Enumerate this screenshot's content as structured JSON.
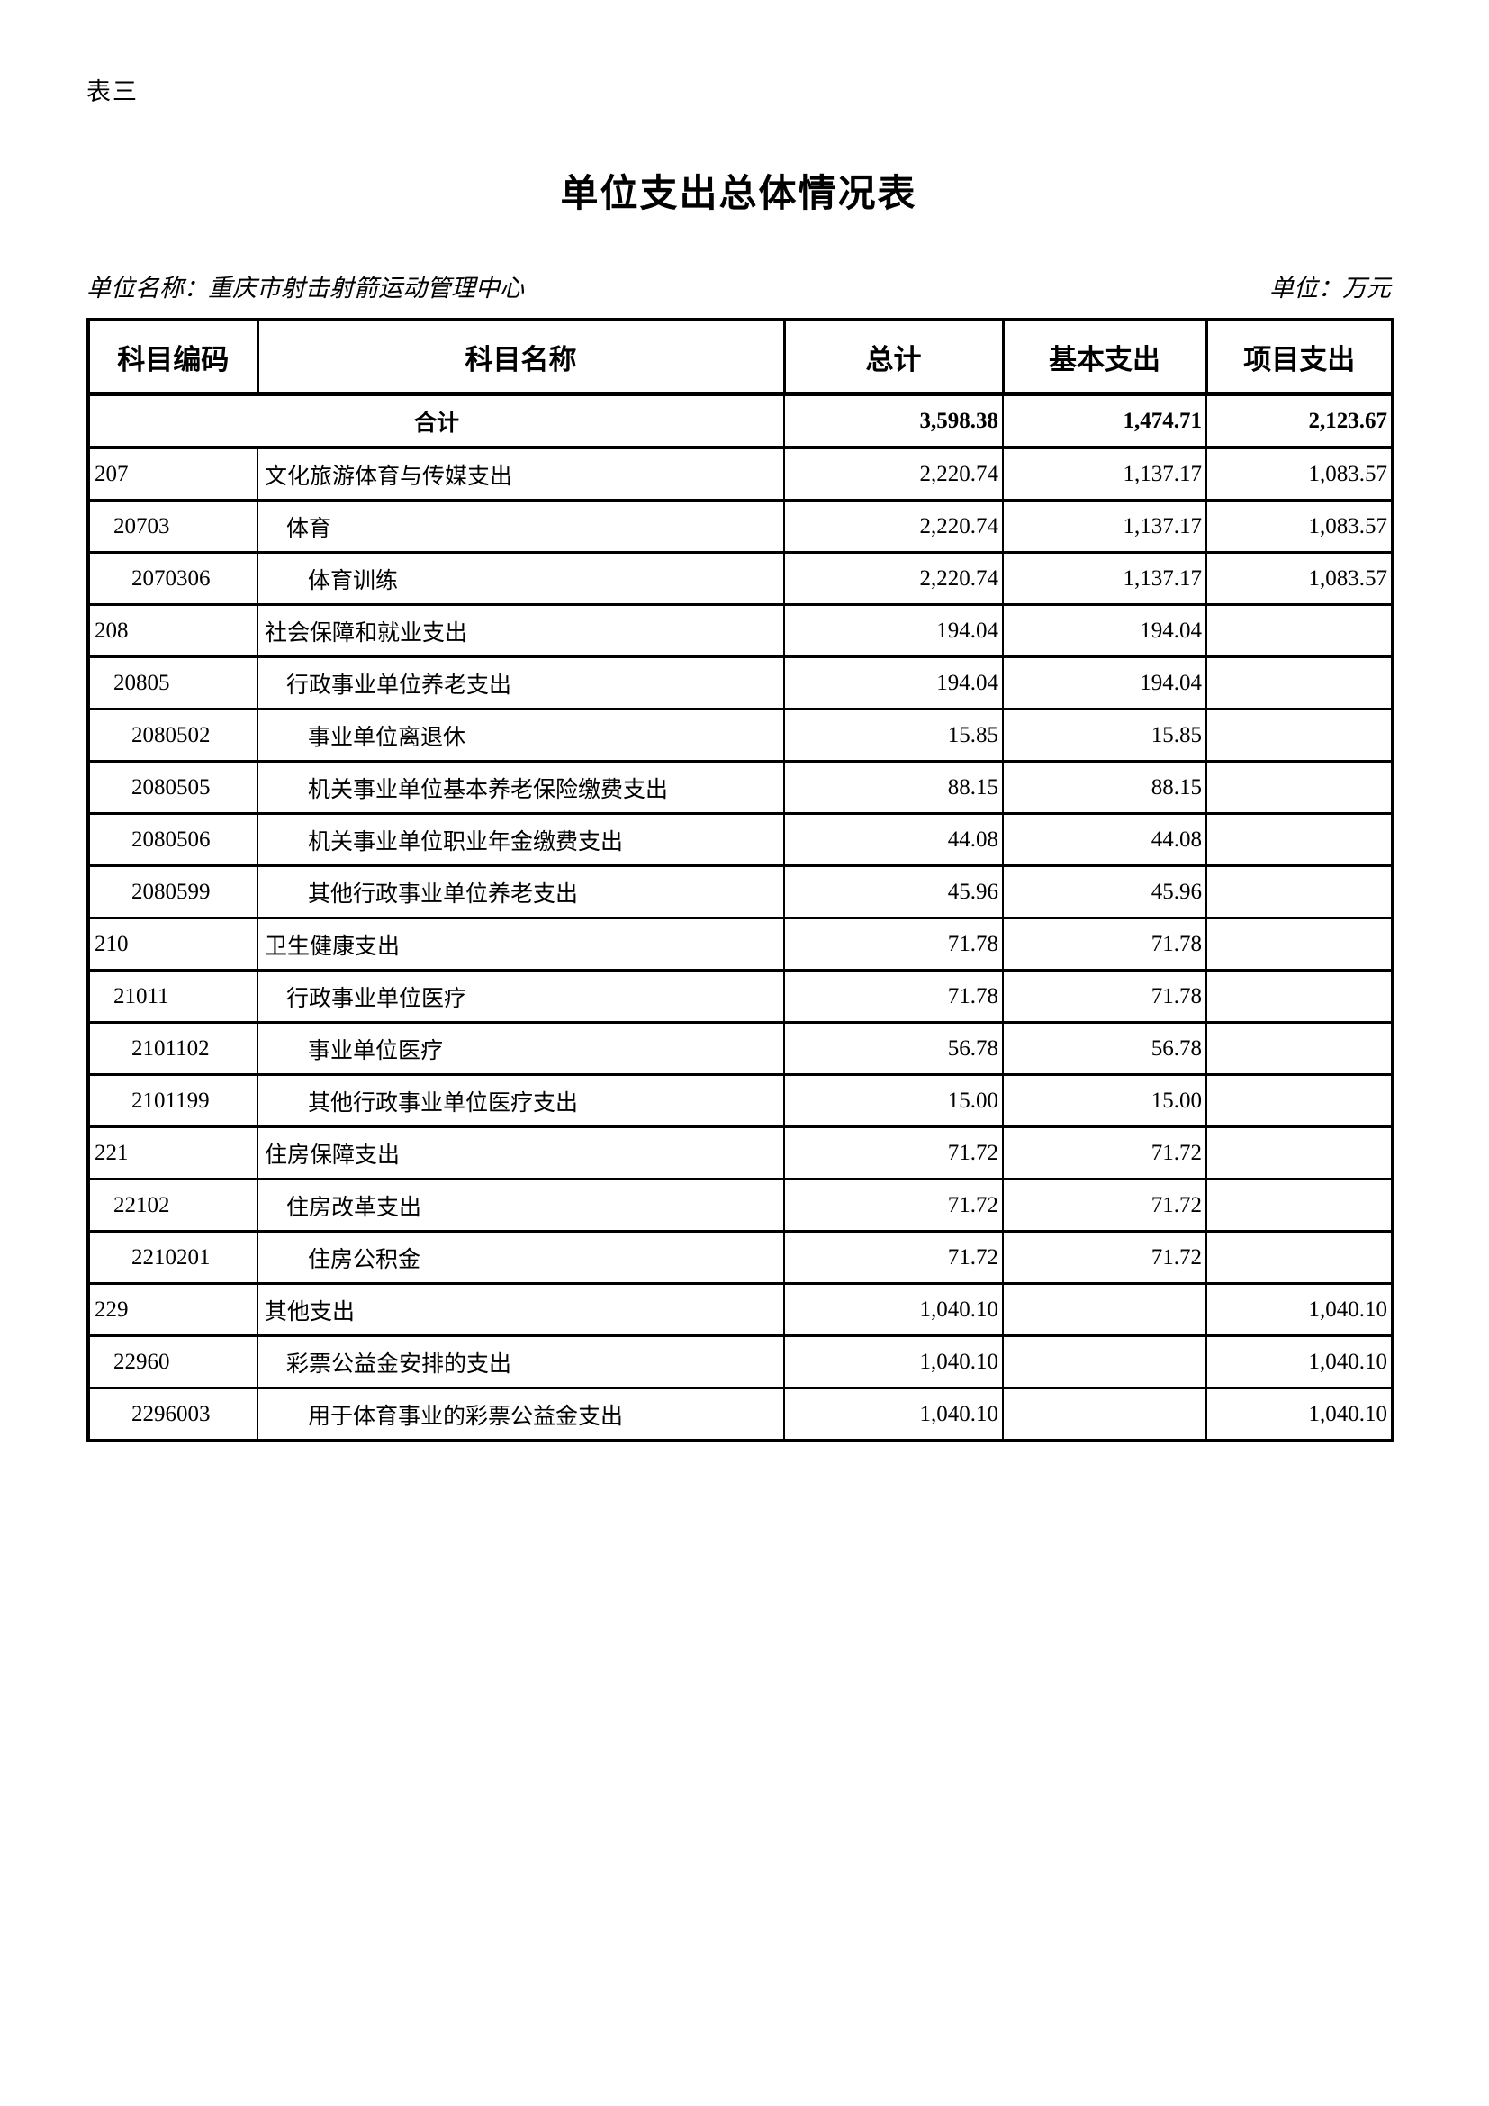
{
  "page": {
    "table_label": "表三",
    "title": "单位支出总体情况表",
    "unit_name": "单位名称：重庆市射击射箭运动管理中心",
    "unit": "单位：万元"
  },
  "table": {
    "headers": [
      "科目编码",
      "科目名称",
      "总计",
      "基本支出",
      "项目支出"
    ],
    "total_row": {
      "label": "合计",
      "total": "3,598.38",
      "basic": "1,474.71",
      "project": "2,123.67"
    },
    "rows": [
      {
        "code": "207",
        "name": "文化旅游体育与传媒支出",
        "level": 0,
        "total": "2,220.74",
        "basic": "1,137.17",
        "project": "1,083.57"
      },
      {
        "code": "20703",
        "name": "体育",
        "level": 1,
        "total": "2,220.74",
        "basic": "1,137.17",
        "project": "1,083.57"
      },
      {
        "code": "2070306",
        "name": "体育训练",
        "level": 2,
        "total": "2,220.74",
        "basic": "1,137.17",
        "project": "1,083.57"
      },
      {
        "code": "208",
        "name": "社会保障和就业支出",
        "level": 0,
        "total": "194.04",
        "basic": "194.04",
        "project": ""
      },
      {
        "code": "20805",
        "name": "行政事业单位养老支出",
        "level": 1,
        "total": "194.04",
        "basic": "194.04",
        "project": ""
      },
      {
        "code": "2080502",
        "name": "事业单位离退休",
        "level": 2,
        "total": "15.85",
        "basic": "15.85",
        "project": ""
      },
      {
        "code": "2080505",
        "name": "机关事业单位基本养老保险缴费支出",
        "level": 2,
        "total": "88.15",
        "basic": "88.15",
        "project": ""
      },
      {
        "code": "2080506",
        "name": "机关事业单位职业年金缴费支出",
        "level": 2,
        "total": "44.08",
        "basic": "44.08",
        "project": ""
      },
      {
        "code": "2080599",
        "name": "其他行政事业单位养老支出",
        "level": 2,
        "total": "45.96",
        "basic": "45.96",
        "project": ""
      },
      {
        "code": "210",
        "name": "卫生健康支出",
        "level": 0,
        "total": "71.78",
        "basic": "71.78",
        "project": ""
      },
      {
        "code": "21011",
        "name": "行政事业单位医疗",
        "level": 1,
        "total": "71.78",
        "basic": "71.78",
        "project": ""
      },
      {
        "code": "2101102",
        "name": "事业单位医疗",
        "level": 2,
        "total": "56.78",
        "basic": "56.78",
        "project": ""
      },
      {
        "code": "2101199",
        "name": "其他行政事业单位医疗支出",
        "level": 2,
        "total": "15.00",
        "basic": "15.00",
        "project": ""
      },
      {
        "code": "221",
        "name": "住房保障支出",
        "level": 0,
        "total": "71.72",
        "basic": "71.72",
        "project": ""
      },
      {
        "code": "22102",
        "name": "住房改革支出",
        "level": 1,
        "total": "71.72",
        "basic": "71.72",
        "project": ""
      },
      {
        "code": "2210201",
        "name": "住房公积金",
        "level": 2,
        "total": "71.72",
        "basic": "71.72",
        "project": ""
      },
      {
        "code": "229",
        "name": "其他支出",
        "level": 0,
        "total": "1,040.10",
        "basic": "",
        "project": "1,040.10"
      },
      {
        "code": "22960",
        "name": "彩票公益金安排的支出",
        "level": 1,
        "total": "1,040.10",
        "basic": "",
        "project": "1,040.10"
      },
      {
        "code": "2296003",
        "name": "用于体育事业的彩票公益金支出",
        "level": 2,
        "total": "1,040.10",
        "basic": "",
        "project": "1,040.10"
      }
    ]
  }
}
